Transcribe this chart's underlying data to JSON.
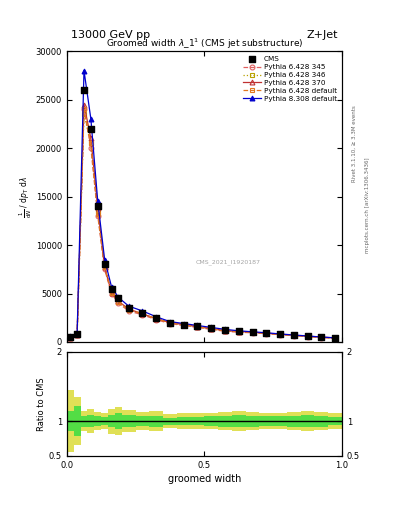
{
  "title": "13000 GeV pp",
  "title_right": "Z+Jet",
  "xlabel": "groomed width",
  "ylabel2": "Ratio to CMS",
  "right_label": "Rivet 3.1.10, ≥ 3.3M events",
  "right_label2": "mcplots.cern.ch [arXiv:1306.3436]",
  "watermark": "CMS_2021_I1920187",
  "xlim": [
    0,
    1
  ],
  "ylim_main": [
    0,
    30000
  ],
  "ylim_ratio": [
    0.5,
    2.0
  ],
  "cms_x": [
    0.0125,
    0.0375,
    0.0625,
    0.0875,
    0.1125,
    0.1375,
    0.1625,
    0.1875,
    0.225,
    0.275,
    0.325,
    0.375,
    0.425,
    0.475,
    0.525,
    0.575,
    0.625,
    0.675,
    0.725,
    0.775,
    0.825,
    0.875,
    0.925,
    0.975
  ],
  "cms_y": [
    500,
    800,
    26000,
    22000,
    14000,
    8000,
    5500,
    4500,
    3500,
    3000,
    2500,
    2000,
    1800,
    1600,
    1400,
    1200,
    1100,
    1000,
    900,
    800,
    700,
    600,
    500,
    400
  ],
  "p6_345_y": [
    400,
    750,
    24000,
    20000,
    13000,
    7500,
    5000,
    4000,
    3200,
    2800,
    2300,
    1900,
    1700,
    1500,
    1300,
    1100,
    1000,
    950,
    850,
    750,
    650,
    550,
    450,
    380
  ],
  "p6_346_y": [
    400,
    780,
    23500,
    20500,
    13500,
    7800,
    5200,
    4100,
    3300,
    2900,
    2400,
    2000,
    1750,
    1550,
    1350,
    1150,
    1050,
    980,
    880,
    780,
    680,
    580,
    480,
    400
  ],
  "p6_370_y": [
    420,
    760,
    24500,
    21000,
    13800,
    7700,
    5100,
    4200,
    3400,
    2900,
    2400,
    2000,
    1800,
    1580,
    1380,
    1180,
    1080,
    1010,
    910,
    800,
    700,
    600,
    500,
    420
  ],
  "p6_def_y": [
    420,
    780,
    24000,
    20500,
    13200,
    7700,
    5100,
    4100,
    3350,
    2900,
    2380,
    1980,
    1780,
    1570,
    1370,
    1170,
    1070,
    1000,
    900,
    790,
    690,
    590,
    490,
    410
  ],
  "p8_def_y": [
    600,
    900,
    28000,
    23000,
    14500,
    8500,
    5700,
    4600,
    3700,
    3200,
    2600,
    2100,
    1900,
    1700,
    1500,
    1300,
    1150,
    1050,
    950,
    830,
    720,
    620,
    510,
    430
  ],
  "bin_edges": [
    0.0,
    0.025,
    0.05,
    0.075,
    0.1,
    0.125,
    0.15,
    0.175,
    0.2,
    0.25,
    0.3,
    0.35,
    0.4,
    0.45,
    0.5,
    0.55,
    0.6,
    0.65,
    0.7,
    0.75,
    0.8,
    0.85,
    0.9,
    0.95,
    1.0
  ],
  "ratio_green_lo": [
    0.85,
    0.78,
    0.92,
    0.91,
    0.93,
    0.94,
    0.91,
    0.89,
    0.91,
    0.93,
    0.92,
    0.95,
    0.94,
    0.94,
    0.93,
    0.92,
    0.91,
    0.92,
    0.93,
    0.93,
    0.92,
    0.91,
    0.92,
    0.94
  ],
  "ratio_green_hi": [
    1.15,
    1.22,
    1.08,
    1.09,
    1.07,
    1.06,
    1.09,
    1.11,
    1.09,
    1.07,
    1.08,
    1.05,
    1.06,
    1.06,
    1.07,
    1.08,
    1.09,
    1.08,
    1.07,
    1.07,
    1.08,
    1.09,
    1.08,
    1.06
  ],
  "ratio_yellow_lo": [
    0.55,
    0.65,
    0.85,
    0.83,
    0.87,
    0.88,
    0.82,
    0.8,
    0.84,
    0.87,
    0.86,
    0.9,
    0.89,
    0.89,
    0.88,
    0.87,
    0.86,
    0.87,
    0.88,
    0.88,
    0.87,
    0.86,
    0.87,
    0.89
  ],
  "ratio_yellow_hi": [
    1.45,
    1.35,
    1.15,
    1.17,
    1.13,
    1.12,
    1.18,
    1.2,
    1.16,
    1.13,
    1.14,
    1.1,
    1.11,
    1.11,
    1.12,
    1.13,
    1.14,
    1.13,
    1.12,
    1.12,
    1.13,
    1.14,
    1.13,
    1.11
  ],
  "color_p6_345": "#e06060",
  "color_p6_346": "#b8a000",
  "color_p6_370": "#c03030",
  "color_p6_def": "#e07820",
  "color_p8_def": "#0000cc",
  "green_color": "#44dd44",
  "yellow_color": "#dddd44"
}
